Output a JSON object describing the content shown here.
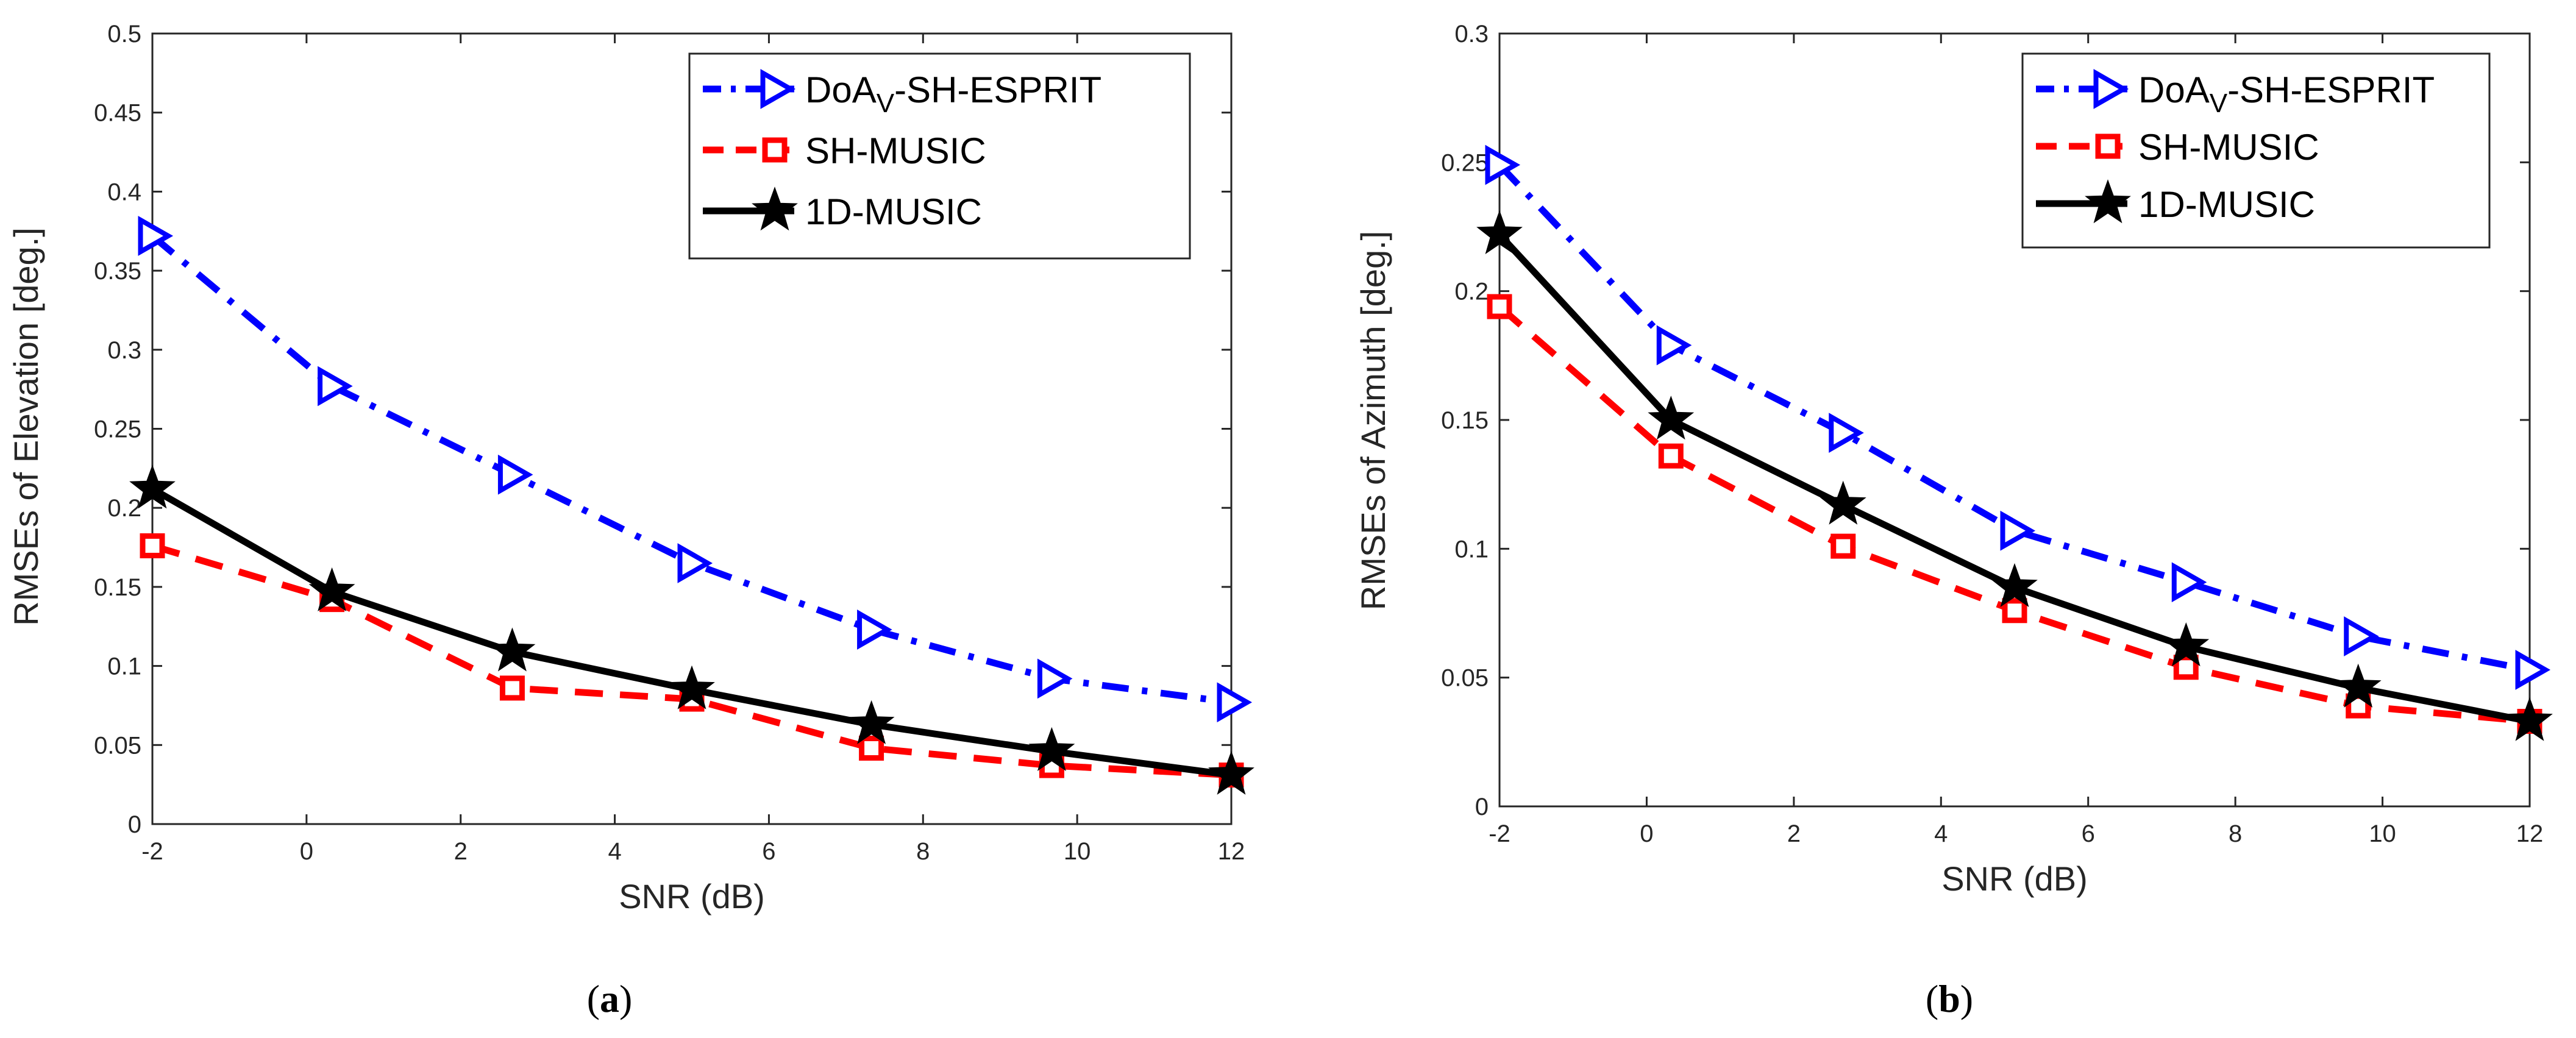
{
  "chart_data": [
    {
      "type": "line",
      "panel_label": {
        "open": "(",
        "letter": "a",
        "close": ")"
      },
      "xlabel": "SNR (dB)",
      "ylabel": "RMSEs of Elevation [deg.]",
      "xlim": [
        -2,
        12
      ],
      "ylim": [
        0,
        0.5
      ],
      "xticks": [
        -2,
        0,
        2,
        4,
        6,
        8,
        10,
        12
      ],
      "yticks": [
        0,
        0.05,
        0.1,
        0.15,
        0.2,
        0.25,
        0.3,
        0.35,
        0.4,
        0.45,
        0.5
      ],
      "xtick_labels": [
        "-2",
        "0",
        "2",
        "4",
        "6",
        "8",
        "10",
        "12"
      ],
      "ytick_labels": [
        "0",
        "0.05",
        "0.1",
        "0.15",
        "0.2",
        "0.25",
        "0.3",
        "0.35",
        "0.4",
        "0.45",
        "0.5"
      ],
      "legend_position": "top-right",
      "series": [
        {
          "key": "esprit",
          "name_main": "DoA",
          "name_sub": "V",
          "name_rest": "-SH-ESPRIT",
          "color": "#0000ff",
          "style": "dashdot",
          "marker": "triangle-right",
          "x": [
            -2,
            0.33,
            2.67,
            5,
            7.33,
            9.67,
            12
          ],
          "y": [
            0.372,
            0.277,
            0.221,
            0.165,
            0.123,
            0.092,
            0.077
          ]
        },
        {
          "key": "shmusic",
          "name_main": "SH-MUSIC",
          "name_sub": "",
          "name_rest": "",
          "color": "#ff0000",
          "style": "dashed",
          "marker": "square",
          "x": [
            -2,
            0.33,
            2.67,
            5,
            7.33,
            9.67,
            12
          ],
          "y": [
            0.176,
            0.142,
            0.086,
            0.079,
            0.048,
            0.037,
            0.031
          ]
        },
        {
          "key": "music1d",
          "name_main": "1D-MUSIC",
          "name_sub": "",
          "name_rest": "",
          "color": "#000000",
          "style": "solid",
          "marker": "star",
          "x": [
            -2,
            0.33,
            2.67,
            5,
            7.33,
            9.67,
            12
          ],
          "y": [
            0.212,
            0.147,
            0.109,
            0.085,
            0.063,
            0.046,
            0.031
          ]
        }
      ]
    },
    {
      "type": "line",
      "panel_label": {
        "open": "(",
        "letter": "b",
        "close": ")"
      },
      "xlabel": "SNR (dB)",
      "ylabel": "RMSEs of Azimuth [deg.]",
      "xlim": [
        -2,
        12
      ],
      "ylim": [
        0,
        0.3
      ],
      "xticks": [
        -2,
        0,
        2,
        4,
        6,
        8,
        10,
        12
      ],
      "yticks": [
        0,
        0.05,
        0.1,
        0.15,
        0.2,
        0.25,
        0.3
      ],
      "xtick_labels": [
        "-2",
        "0",
        "2",
        "4",
        "6",
        "8",
        "10",
        "12"
      ],
      "ytick_labels": [
        "0",
        "0.05",
        "0.1",
        "0.15",
        "0.2",
        "0.25",
        "0.3"
      ],
      "legend_position": "top-right",
      "series": [
        {
          "key": "esprit",
          "name_main": "DoA",
          "name_sub": "V",
          "name_rest": "-SH-ESPRIT",
          "color": "#0000ff",
          "style": "dashdot",
          "marker": "triangle-right",
          "x": [
            -2,
            0.33,
            2.67,
            5,
            7.33,
            9.67,
            12
          ],
          "y": [
            0.249,
            0.179,
            0.145,
            0.107,
            0.087,
            0.066,
            0.053
          ]
        },
        {
          "key": "shmusic",
          "name_main": "SH-MUSIC",
          "name_sub": "",
          "name_rest": "",
          "color": "#ff0000",
          "style": "dashed",
          "marker": "square",
          "x": [
            -2,
            0.33,
            2.67,
            5,
            7.33,
            9.67,
            12
          ],
          "y": [
            0.194,
            0.136,
            0.101,
            0.076,
            0.054,
            0.039,
            0.033
          ]
        },
        {
          "key": "music1d",
          "name_main": "1D-MUSIC",
          "name_sub": "",
          "name_rest": "",
          "color": "#000000",
          "style": "solid",
          "marker": "star",
          "x": [
            -2,
            0.33,
            2.67,
            5,
            7.33,
            9.67,
            12
          ],
          "y": [
            0.222,
            0.15,
            0.117,
            0.085,
            0.062,
            0.046,
            0.033
          ]
        }
      ]
    }
  ]
}
